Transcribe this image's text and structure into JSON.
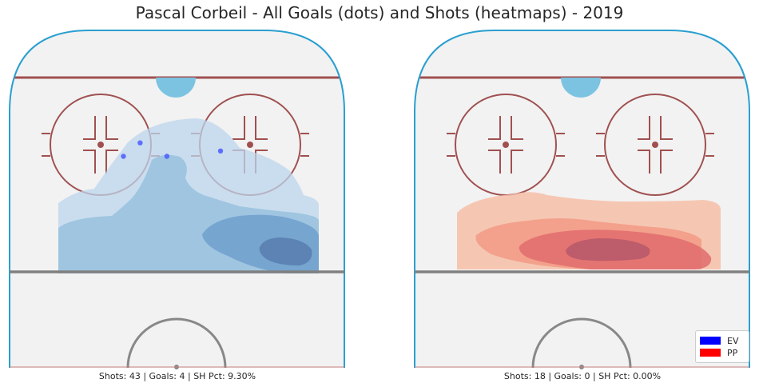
{
  "title": "Pascal Corbeil - All Goals (dots) and Shots (heatmaps) - 2019",
  "colors": {
    "ev": "#0000ff",
    "pp": "#ff0000",
    "rink_border": "#2a9fd0",
    "ice": "#f2f2f2",
    "goal_line": "#a05050",
    "circle": "#a05050",
    "blue_line": "#808080",
    "crease": "#7cc3e1"
  },
  "legend": {
    "placement": "bottom-right",
    "entries": [
      {
        "label": "EV",
        "color": "#0000ff"
      },
      {
        "label": "PP",
        "color": "#ff0000"
      }
    ]
  },
  "chart_data": [
    {
      "type": "heatmap",
      "strength": "EV",
      "caption": "Shots: 43 | Goals: 4 | SH Pct: 9.30%",
      "shots": 43,
      "goals_count": 4,
      "sh_pct": 9.3,
      "goals": [
        {
          "x": 63,
          "y": 70
        },
        {
          "x": 47,
          "y": 72
        },
        {
          "x": 39,
          "y": 67
        },
        {
          "x": 34,
          "y": 72
        }
      ]
    },
    {
      "type": "heatmap",
      "strength": "PP",
      "caption": "Shots: 18 | Goals: 0 | SH Pct: 0.00%",
      "shots": 18,
      "goals_count": 0,
      "sh_pct": 0.0,
      "goals": []
    }
  ]
}
